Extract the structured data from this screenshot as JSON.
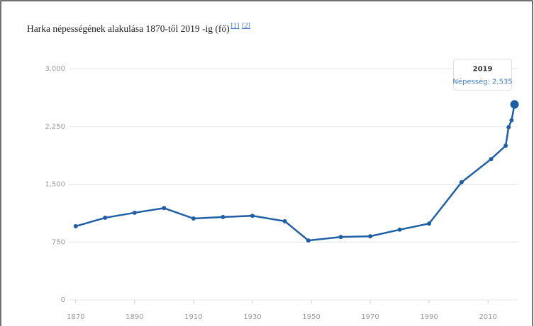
{
  "chart_data": {
    "type": "line",
    "title": "Harka népességének alakulása 1870-től 2019 -ig (fő)",
    "references": [
      "[1]",
      "[2]"
    ],
    "x": [
      1870,
      1880,
      1890,
      1900,
      1910,
      1920,
      1930,
      1941,
      1949,
      1960,
      1970,
      1980,
      1990,
      2001,
      2011,
      2016,
      2017,
      2018,
      2019
    ],
    "series": [
      {
        "name": "Népesség",
        "color": "#1f5fa6",
        "values": [
          955,
          1065,
          1130,
          1190,
          1055,
          1075,
          1090,
          1020,
          770,
          815,
          825,
          910,
          990,
          1525,
          1825,
          2000,
          2240,
          2330,
          2535
        ]
      }
    ],
    "xlim": [
      1865,
      2022
    ],
    "xticks": [
      1870,
      1890,
      1910,
      1930,
      1950,
      1970,
      1990,
      2010
    ],
    "ylim": [
      0,
      3000
    ],
    "yticks": [
      0,
      {
        "value": 750,
        "label": "750"
      },
      {
        "value": 1500,
        "label": "1,500"
      },
      {
        "value": 2250,
        "label": "2,250"
      },
      {
        "value": 3000,
        "label": "3,000"
      }
    ],
    "grid": true,
    "tooltip": {
      "title": "2019",
      "text": "Népesség: 2,535"
    }
  }
}
